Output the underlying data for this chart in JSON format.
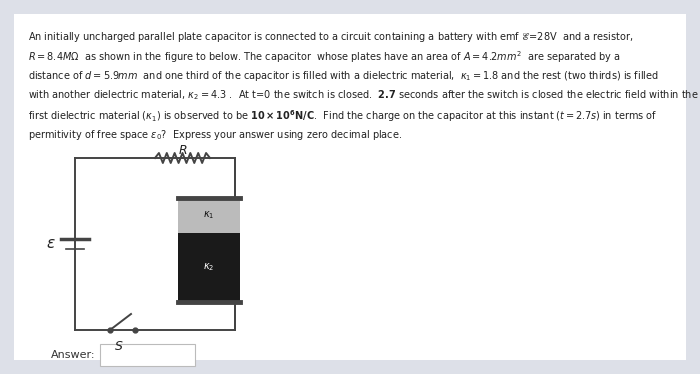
{
  "bg_color": "#dde0e8",
  "card_color": "#ffffff",
  "text_lines": [
    "An initially uncharged parallel plate capacitor is connected to a circuit containing a battery with emf $\\mathscr{E}$=28V  and a resistor,",
    "$R = 8.4M\\Omega$  as shown in the figure to below. The capacitor  whose plates have an area of $A = 4.2mm^2$  are separated by a",
    "distance of $d = 5.9mm$  and one third of the capacitor is filled with a dielectric material,  $\\kappa_1 = 1.8$ and the rest (two thirds) is filled",
    "with another dielectric material, $\\kappa_2 = 4.3$ .  At t=0 the switch is closed.  $\\mathbf{2.7}$ seconds after the switch is closed the electric field within the",
    "first dielectric material ($\\kappa_1$) is observed to be $\\mathbf{10 \\times 10^6 N/C}$.  Find the charge on the capacitor at this instant ($t = 2.7s$) in terms of",
    "permitivity of free space $\\varepsilon_0$?  Express your answer using zero decimal place."
  ],
  "wire_color": "#444444",
  "k1_color": "#bbbbbb",
  "k2_color": "#1a1a1a",
  "answer_label": "Answer:"
}
